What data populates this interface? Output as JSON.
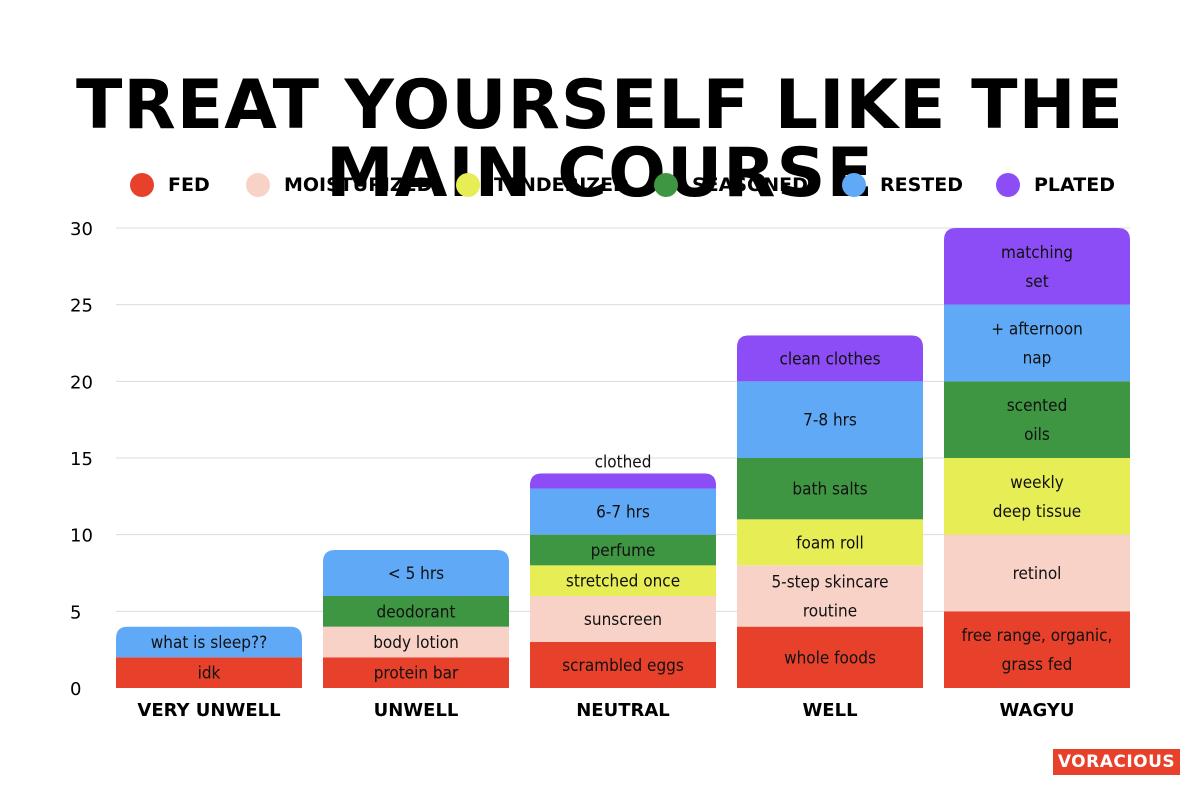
{
  "chart_data": {
    "type": "bar",
    "stacked": true,
    "title": "TREAT YOURSELF LIKE THE MAIN COURSE",
    "xlabel": "",
    "ylabel": "",
    "ylim": [
      0,
      30
    ],
    "yticks": [
      0,
      5,
      10,
      15,
      20,
      25,
      30
    ],
    "grid": true,
    "legend_position": "top",
    "categories": [
      "VERY UNWELL",
      "UNWELL",
      "NEUTRAL",
      "WELL",
      "WAGYU"
    ],
    "series": [
      {
        "name": "FED",
        "color": "#e8412b",
        "values": [
          2,
          2,
          3,
          4,
          5
        ],
        "labels": [
          "idk",
          "protein bar",
          "scrambled eggs",
          "whole foods",
          "free range, organic,\ngrass fed"
        ]
      },
      {
        "name": "MOISTURIZED",
        "color": "#f8d2c7",
        "values": [
          0,
          2,
          3,
          4,
          5
        ],
        "labels": [
          "",
          "body lotion",
          "sunscreen",
          "5-step skincare\nroutine",
          "retinol"
        ]
      },
      {
        "name": "TENDERIZED",
        "color": "#e6ed55",
        "values": [
          0,
          0,
          2,
          3,
          5
        ],
        "labels": [
          "",
          "",
          "stretched once",
          "foam roll",
          "weekly\ndeep tissue"
        ]
      },
      {
        "name": "SEASONED",
        "color": "#3f9642",
        "values": [
          0,
          2,
          2,
          4,
          5
        ],
        "labels": [
          "",
          "deodorant",
          "perfume",
          "bath salts",
          "scented\noils"
        ]
      },
      {
        "name": "RESTED",
        "color": "#60a9f6",
        "values": [
          2,
          3,
          3,
          5,
          5
        ],
        "labels": [
          "what is sleep??",
          "< 5 hrs",
          "6-7 hrs",
          "7-8 hrs",
          "+ afternoon\nnap"
        ]
      },
      {
        "name": "PLATED",
        "color": "#8c4df6",
        "values": [
          0,
          0,
          1,
          3,
          5
        ],
        "labels": [
          "",
          "",
          "clothed",
          "clean clothes",
          "matching\nset"
        ]
      }
    ]
  },
  "logo": {
    "text": "VORACIOUS"
  }
}
